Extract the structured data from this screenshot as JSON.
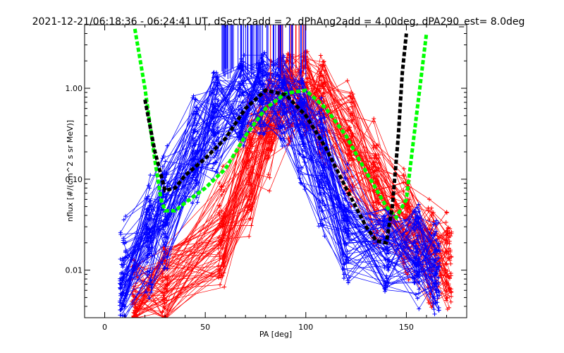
{
  "chart_data": {
    "type": "line",
    "title": "2021-12-21/06:18:36 - 06:24:41 UT, dSectr2add = 2, dPhAng2add = 4.00deg, dPA290_est=   8.0deg",
    "xlabel": "PA [deg]",
    "ylabel": "nflux [#/(cm^2 s sr MeV)]",
    "x_axis": {
      "range": [
        -10,
        180
      ],
      "ticks": [
        0,
        50,
        100,
        150
      ],
      "tick_labels": [
        "0",
        "50",
        "100",
        "150"
      ]
    },
    "y_axis": {
      "scale": "log",
      "range": [
        0.003,
        5
      ],
      "ticks": [
        0.01,
        0.1,
        1.0
      ],
      "tick_labels": [
        "0.01",
        "0.10",
        "1.00"
      ]
    },
    "colors": {
      "red_series": "#ff0000",
      "blue_series": "#0000ff",
      "black_fit": "#000000",
      "green_fit": "#00ff00"
    },
    "series": [
      {
        "color": "red",
        "style": "many thin lines with + markers",
        "representative_points": {
          "x": [
            15,
            30,
            60,
            80,
            95,
            105,
            120,
            145,
            160,
            170
          ],
          "y": [
            0.005,
            0.006,
            0.02,
            0.5,
            0.95,
            0.9,
            0.3,
            0.04,
            0.02,
            0.01
          ]
        }
      },
      {
        "color": "blue",
        "style": "many thin lines with + markers",
        "representative_points": {
          "x": [
            10,
            30,
            55,
            75,
            90,
            105,
            120,
            140,
            155,
            165
          ],
          "y": [
            0.008,
            0.05,
            0.5,
            0.9,
            0.8,
            0.2,
            0.02,
            0.015,
            0.02,
            0.008
          ]
        }
      },
      {
        "color": "black",
        "style": "thick dashed fit curve",
        "x": [
          20,
          25,
          30,
          35,
          40,
          50,
          60,
          70,
          80,
          90,
          100,
          110,
          120,
          130,
          135,
          140,
          143,
          146,
          148,
          150
        ],
        "y": [
          0.75,
          0.2,
          0.075,
          0.08,
          0.11,
          0.17,
          0.28,
          0.6,
          0.95,
          0.85,
          0.5,
          0.22,
          0.08,
          0.03,
          0.021,
          0.02,
          0.05,
          0.3,
          1.5,
          4.0
        ]
      },
      {
        "color": "green",
        "style": "thick dashed fit curve",
        "x": [
          15,
          20,
          25,
          28,
          30,
          35,
          40,
          50,
          60,
          70,
          80,
          90,
          100,
          110,
          120,
          130,
          140,
          145,
          150,
          155,
          160
        ],
        "y": [
          4.5,
          1.0,
          0.16,
          0.06,
          0.045,
          0.045,
          0.055,
          0.08,
          0.13,
          0.3,
          0.6,
          0.88,
          0.95,
          0.6,
          0.3,
          0.12,
          0.05,
          0.038,
          0.06,
          0.5,
          4.0
        ]
      }
    ]
  }
}
